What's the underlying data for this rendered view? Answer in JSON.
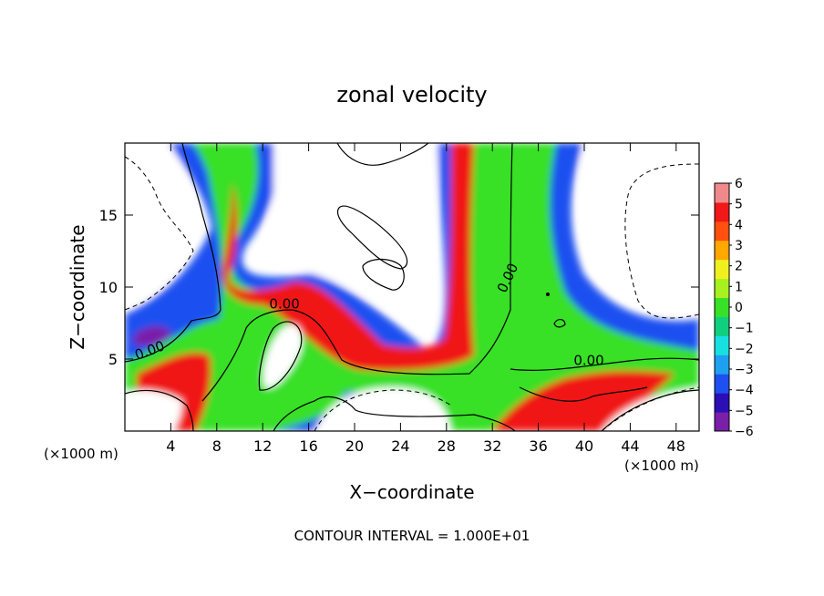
{
  "chart_data": {
    "type": "heatmap",
    "title": "zonal velocity",
    "xlabel": "X−coordinate",
    "ylabel": "Z−coordinate",
    "x_unit_left": "(×1000 m)",
    "x_unit_right": "(×1000 m)",
    "xlim": [
      0,
      50
    ],
    "ylim": [
      0,
      20
    ],
    "x_ticks": [
      4,
      8,
      12,
      16,
      20,
      24,
      28,
      32,
      36,
      40,
      44,
      48
    ],
    "y_ticks": [
      5,
      10,
      15
    ],
    "colorbar": {
      "min": -6,
      "max": 6,
      "labels": [
        "6",
        "5",
        "4",
        "3",
        "2",
        "1",
        "0",
        "−1",
        "−2",
        "−3",
        "−4",
        "−5",
        "−6"
      ],
      "label_values": [
        6,
        5,
        4,
        3,
        2,
        1,
        0,
        -1,
        -2,
        -3,
        -4,
        -5,
        -6
      ],
      "colors": [
        "#7a1fa8",
        "#2b0fb5",
        "#1e50f0",
        "#1ea0f0",
        "#18e0e0",
        "#10d080",
        "#38e028",
        "#a8f020",
        "#f0f020",
        "#ffa800",
        "#ff5010",
        "#f01818",
        "#f08a8a"
      ]
    },
    "contour_labels": [
      {
        "text": "0.00",
        "x": 2.3,
        "y": 5.3,
        "angle": -20
      },
      {
        "text": "0.00",
        "x": 13.9,
        "y": 8.5,
        "angle": 0
      },
      {
        "text": "0.00",
        "x": 33.7,
        "y": 10.5,
        "angle": -65
      },
      {
        "text": "0.00",
        "x": 40.4,
        "y": 4.6,
        "angle": 0
      }
    ],
    "note": "CONTOUR INTERVAL = 1.000E+01"
  }
}
